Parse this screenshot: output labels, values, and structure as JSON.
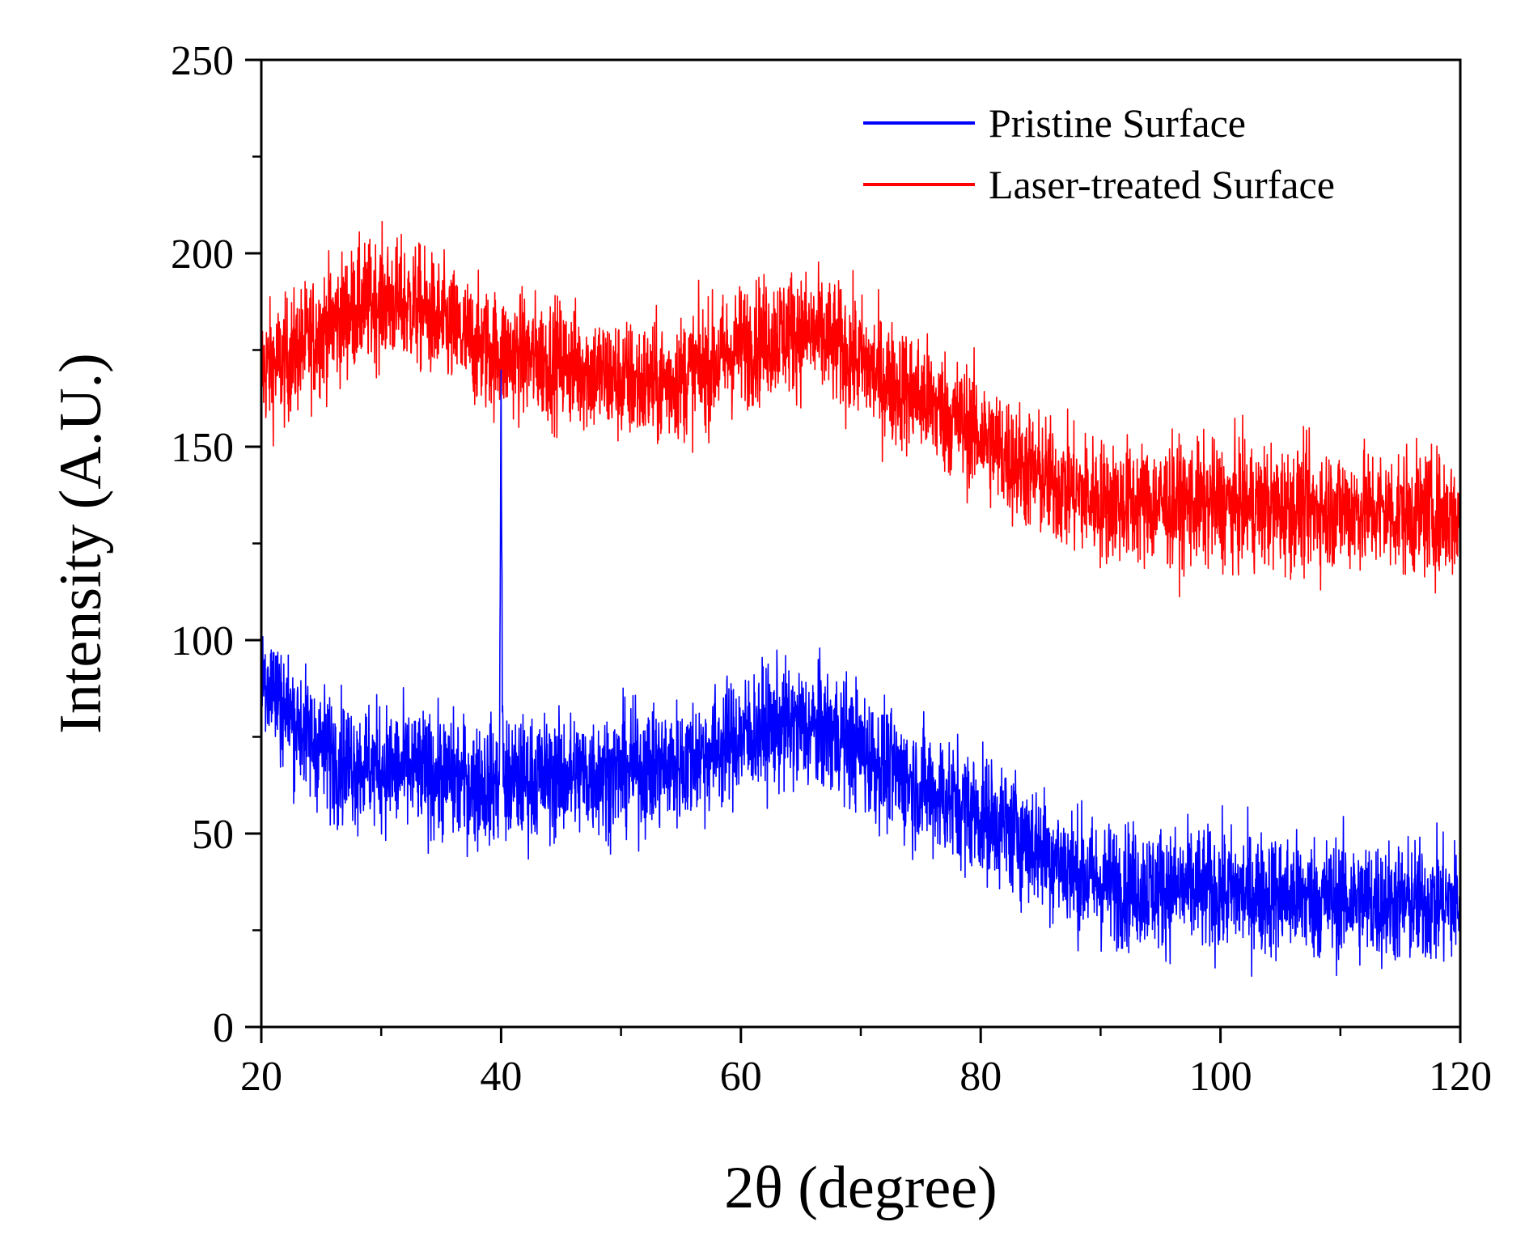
{
  "chart_data": {
    "type": "line",
    "title": "",
    "xlabel": "2θ (degree)",
    "ylabel": "Intensity (A.U.)",
    "xlim": [
      20,
      120
    ],
    "ylim": [
      0,
      250
    ],
    "x_ticks": [
      20,
      40,
      60,
      80,
      100,
      120
    ],
    "y_ticks": [
      0,
      50,
      100,
      150,
      200,
      250
    ],
    "x_tick_labels": [
      "20",
      "40",
      "60",
      "80",
      "100",
      "120"
    ],
    "y_tick_labels": [
      "0",
      "50",
      "100",
      "150",
      "200",
      "250"
    ],
    "grid": false,
    "legend_position": "top-right",
    "series": [
      {
        "name": "Pristine Surface",
        "color": "#0000ff",
        "noise_amplitude": 8,
        "envelope": {
          "x": [
            20,
            21,
            22,
            24,
            26,
            28,
            30,
            35,
            38,
            40,
            42,
            45,
            50,
            55,
            58,
            60,
            62,
            64,
            66,
            68,
            70,
            72,
            75,
            78,
            80,
            82,
            85,
            88,
            90,
            95,
            100,
            105,
            110,
            115,
            120
          ],
          "y": [
            92,
            88,
            82,
            75,
            70,
            68,
            67,
            65,
            63,
            63,
            64,
            65,
            66,
            68,
            72,
            75,
            77,
            78,
            77,
            76,
            72,
            67,
            62,
            58,
            55,
            52,
            46,
            40,
            37,
            36,
            35,
            34,
            33,
            32,
            32
          ]
        },
        "peaks": [
          {
            "x": 40,
            "y": 163
          }
        ]
      },
      {
        "name": "Laser-treated Surface",
        "color": "#ff0000",
        "noise_amplitude": 8,
        "envelope": {
          "x": [
            20,
            22,
            25,
            28,
            30,
            33,
            35,
            38,
            40,
            45,
            50,
            53,
            55,
            58,
            60,
            62,
            64,
            66,
            68,
            70,
            72,
            75,
            78,
            80,
            82,
            85,
            88,
            90,
            95,
            100,
            105,
            110,
            115,
            120
          ],
          "y": [
            170,
            172,
            180,
            186,
            188,
            186,
            182,
            176,
            174,
            172,
            167,
            166,
            168,
            172,
            176,
            178,
            180,
            179,
            176,
            172,
            167,
            163,
            157,
            153,
            148,
            142,
            138,
            136,
            135,
            135,
            134,
            134,
            133,
            132
          ]
        },
        "peaks": []
      }
    ]
  }
}
